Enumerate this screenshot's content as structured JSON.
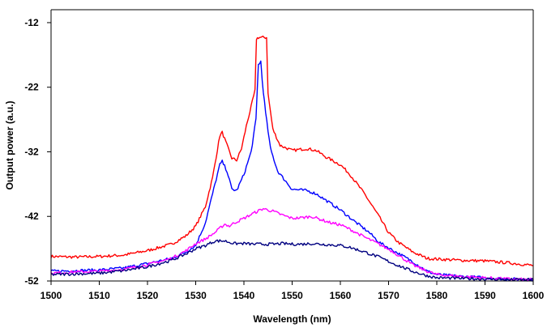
{
  "chart_data": {
    "type": "line",
    "title": "",
    "xlabel": "Wavelength (nm)",
    "ylabel": "Output power (a.u.)",
    "xlim": [
      1500,
      1600
    ],
    "ylim": [
      -52,
      -10
    ],
    "x_ticks": [
      1500,
      1510,
      1520,
      1530,
      1540,
      1550,
      1560,
      1570,
      1580,
      1590,
      1600
    ],
    "x_tick_labels": [
      "1500",
      "1510",
      "1520",
      "1530",
      "1540",
      "1550",
      "1560",
      "1570",
      "1580",
      "1590",
      "1600"
    ],
    "y_ticks": [
      -12,
      -22,
      -32,
      -42,
      -52
    ],
    "y_tick_labels": [
      "-12",
      "-22",
      "-32",
      "-42",
      "-52"
    ],
    "grid": false,
    "legend": "none",
    "series": [
      {
        "color": "#ff0000",
        "points": [
          [
            1500,
            -48.2
          ],
          [
            1505,
            -48.3
          ],
          [
            1510,
            -48.2
          ],
          [
            1515,
            -48.0
          ],
          [
            1520,
            -47.3
          ],
          [
            1525,
            -46.3
          ],
          [
            1528,
            -45.0
          ],
          [
            1530,
            -43.5
          ],
          [
            1532,
            -40.5
          ],
          [
            1533.5,
            -36.0
          ],
          [
            1535,
            -29.5
          ],
          [
            1535.5,
            -29.0
          ],
          [
            1536.5,
            -31.0
          ],
          [
            1537.5,
            -33.0
          ],
          [
            1538.5,
            -33.3
          ],
          [
            1539.5,
            -31.5
          ],
          [
            1540.5,
            -28.0
          ],
          [
            1541.5,
            -25.0
          ],
          [
            1542.3,
            -22.5
          ],
          [
            1542.6,
            -14.5
          ],
          [
            1543,
            -14.3
          ],
          [
            1544.7,
            -14.3
          ],
          [
            1545,
            -23.0
          ],
          [
            1546,
            -28.5
          ],
          [
            1547.5,
            -31.0
          ],
          [
            1550,
            -31.8
          ],
          [
            1553,
            -31.5
          ],
          [
            1555,
            -31.8
          ],
          [
            1557,
            -32.8
          ],
          [
            1560,
            -34.0
          ],
          [
            1562,
            -35.5
          ],
          [
            1565,
            -38.5
          ],
          [
            1568,
            -42.0
          ],
          [
            1570,
            -44.5
          ],
          [
            1572,
            -46.0
          ],
          [
            1575,
            -47.5
          ],
          [
            1578,
            -48.5
          ],
          [
            1580,
            -48.6
          ],
          [
            1585,
            -48.8
          ],
          [
            1590,
            -48.9
          ],
          [
            1595,
            -49.2
          ],
          [
            1600,
            -49.6
          ]
        ]
      },
      {
        "color": "#0000ff",
        "points": [
          [
            1500,
            -50.5
          ],
          [
            1505,
            -50.4
          ],
          [
            1510,
            -50.3
          ],
          [
            1515,
            -50.0
          ],
          [
            1520,
            -49.3
          ],
          [
            1525,
            -48.5
          ],
          [
            1528,
            -47.5
          ],
          [
            1530,
            -46.5
          ],
          [
            1532,
            -43.0
          ],
          [
            1533.5,
            -38.5
          ],
          [
            1535,
            -34.0
          ],
          [
            1535.5,
            -33.5
          ],
          [
            1536.5,
            -35.0
          ],
          [
            1537.5,
            -37.8
          ],
          [
            1538.5,
            -38.0
          ],
          [
            1540,
            -35.5
          ],
          [
            1541.5,
            -32.0
          ],
          [
            1542.5,
            -27.0
          ],
          [
            1543,
            -18.5
          ],
          [
            1543.5,
            -18.0
          ],
          [
            1543.8,
            -21.0
          ],
          [
            1544.5,
            -26.0
          ],
          [
            1545.5,
            -31.5
          ],
          [
            1547,
            -35.0
          ],
          [
            1550,
            -37.8
          ],
          [
            1553,
            -38.0
          ],
          [
            1555,
            -38.5
          ],
          [
            1557,
            -39.5
          ],
          [
            1560,
            -41.0
          ],
          [
            1563,
            -42.8
          ],
          [
            1566,
            -44.5
          ],
          [
            1568,
            -46.0
          ],
          [
            1571,
            -47.3
          ],
          [
            1575,
            -49.0
          ],
          [
            1578,
            -50.5
          ],
          [
            1580,
            -51.0
          ],
          [
            1585,
            -51.3
          ],
          [
            1590,
            -51.5
          ],
          [
            1595,
            -51.7
          ],
          [
            1600,
            -51.8
          ]
        ]
      },
      {
        "color": "#ff00ff",
        "points": [
          [
            1500,
            -50.8
          ],
          [
            1505,
            -50.6
          ],
          [
            1510,
            -50.5
          ],
          [
            1515,
            -50.2
          ],
          [
            1520,
            -49.5
          ],
          [
            1525,
            -48.5
          ],
          [
            1528,
            -47.3
          ],
          [
            1530,
            -46.2
          ],
          [
            1532,
            -45.5
          ],
          [
            1534,
            -44.5
          ],
          [
            1536,
            -43.2
          ],
          [
            1537,
            -43.5
          ],
          [
            1538,
            -43.0
          ],
          [
            1540,
            -42.3
          ],
          [
            1542,
            -41.5
          ],
          [
            1544,
            -40.8
          ],
          [
            1546,
            -41.2
          ],
          [
            1548,
            -41.8
          ],
          [
            1550,
            -42.3
          ],
          [
            1552,
            -42.2
          ],
          [
            1554,
            -42.0
          ],
          [
            1556,
            -42.5
          ],
          [
            1558,
            -43.0
          ],
          [
            1560,
            -43.3
          ],
          [
            1562,
            -44.0
          ],
          [
            1565,
            -45.2
          ],
          [
            1568,
            -46.3
          ],
          [
            1571,
            -47.5
          ],
          [
            1575,
            -49.5
          ],
          [
            1578,
            -50.5
          ],
          [
            1580,
            -51.0
          ],
          [
            1585,
            -51.3
          ],
          [
            1590,
            -51.5
          ],
          [
            1595,
            -51.7
          ],
          [
            1600,
            -51.8
          ]
        ]
      },
      {
        "color": "#000080",
        "points": [
          [
            1500,
            -51.0
          ],
          [
            1505,
            -50.9
          ],
          [
            1510,
            -50.8
          ],
          [
            1515,
            -50.4
          ],
          [
            1520,
            -49.8
          ],
          [
            1525,
            -48.8
          ],
          [
            1528,
            -47.8
          ],
          [
            1530,
            -47.0
          ],
          [
            1532,
            -46.5
          ],
          [
            1534,
            -45.8
          ],
          [
            1536,
            -45.8
          ],
          [
            1538,
            -46.2
          ],
          [
            1540,
            -46.2
          ],
          [
            1542,
            -46.3
          ],
          [
            1544,
            -46.3
          ],
          [
            1546,
            -46.3
          ],
          [
            1548,
            -46.2
          ],
          [
            1550,
            -46.3
          ],
          [
            1552,
            -46.3
          ],
          [
            1554,
            -46.2
          ],
          [
            1556,
            -46.3
          ],
          [
            1558,
            -46.4
          ],
          [
            1560,
            -46.5
          ],
          [
            1562,
            -46.8
          ],
          [
            1565,
            -47.5
          ],
          [
            1568,
            -48.3
          ],
          [
            1571,
            -49.3
          ],
          [
            1575,
            -50.5
          ],
          [
            1578,
            -51.2
          ],
          [
            1580,
            -51.5
          ],
          [
            1585,
            -51.6
          ],
          [
            1590,
            -51.7
          ],
          [
            1595,
            -51.8
          ],
          [
            1600,
            -51.8
          ]
        ]
      }
    ]
  }
}
